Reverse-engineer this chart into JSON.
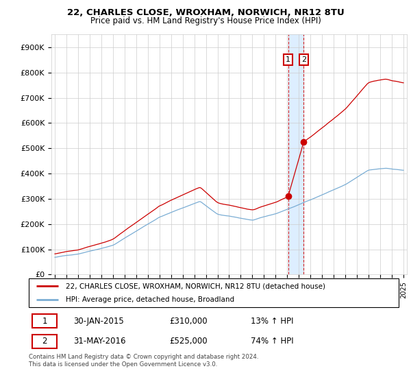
{
  "title": "22, CHARLES CLOSE, WROXHAM, NORWICH, NR12 8TU",
  "subtitle": "Price paid vs. HM Land Registry's House Price Index (HPI)",
  "ylabel_ticks": [
    "£0",
    "£100K",
    "£200K",
    "£300K",
    "£400K",
    "£500K",
    "£600K",
    "£700K",
    "£800K",
    "£900K"
  ],
  "ytick_vals": [
    0,
    100000,
    200000,
    300000,
    400000,
    500000,
    600000,
    700000,
    800000,
    900000
  ],
  "ylim": [
    0,
    950000
  ],
  "sale1_date": 2015.08,
  "sale1_price": 310000,
  "sale2_date": 2016.42,
  "sale2_price": 525000,
  "legend_line1": "22, CHARLES CLOSE, WROXHAM, NORWICH, NR12 8TU (detached house)",
  "legend_line2": "HPI: Average price, detached house, Broadland",
  "table_row1": [
    "1",
    "30-JAN-2015",
    "£310,000",
    "13% ↑ HPI"
  ],
  "table_row2": [
    "2",
    "31-MAY-2016",
    "£525,000",
    "74% ↑ HPI"
  ],
  "footer": "Contains HM Land Registry data © Crown copyright and database right 2024.\nThis data is licensed under the Open Government Licence v3.0.",
  "red_color": "#cc0000",
  "blue_color": "#7aadd4",
  "shade_color": "#ddeeff",
  "background_color": "#ffffff",
  "grid_color": "#cccccc"
}
